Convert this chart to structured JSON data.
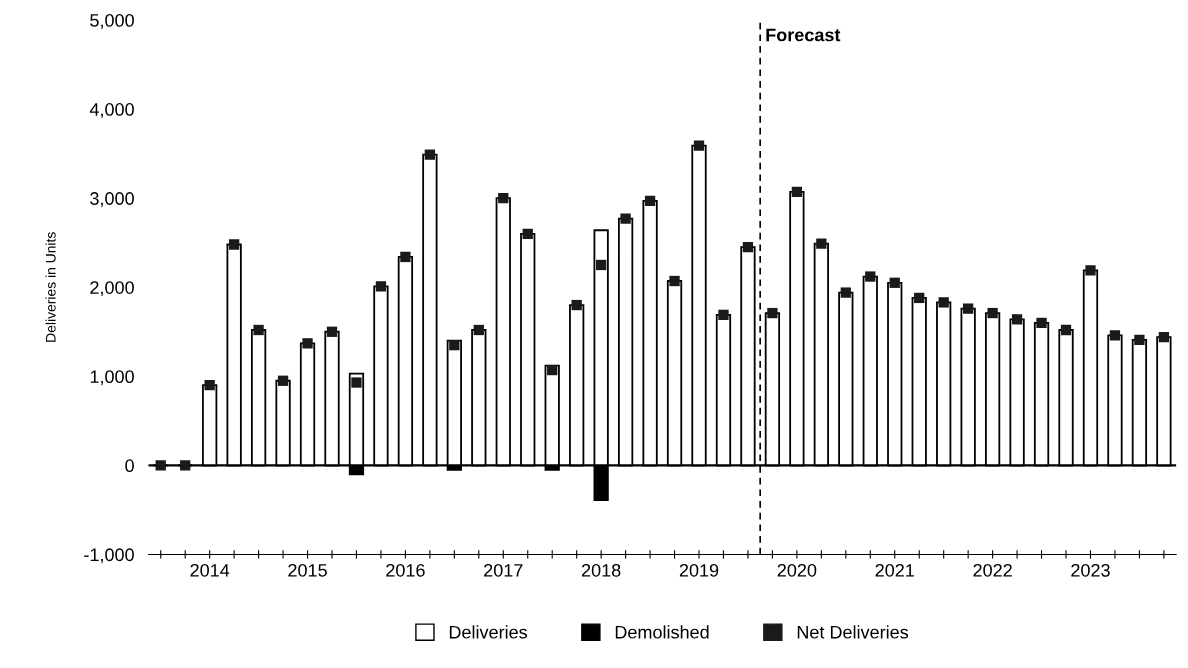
{
  "chart_data": {
    "type": "bar",
    "ylabel": "Deliveries in Units",
    "categories": [
      null,
      null,
      "2014",
      null,
      null,
      null,
      "2015",
      null,
      null,
      null,
      "2016",
      null,
      null,
      null,
      "2017",
      null,
      null,
      null,
      "2018",
      null,
      null,
      null,
      "2019",
      null,
      null,
      null,
      "2020",
      null,
      null,
      null,
      "2021",
      null,
      null,
      null,
      "2022",
      null,
      null,
      null,
      "2023",
      null,
      null,
      null
    ],
    "series": [
      {
        "name": "Deliveries",
        "color": "#ffffff",
        "values": [
          0,
          0,
          900,
          2480,
          1520,
          950,
          1370,
          1500,
          1030,
          2010,
          2340,
          3490,
          1400,
          1520,
          3000,
          2600,
          1120,
          1800,
          2640,
          2770,
          2970,
          2070,
          3590,
          1690,
          2450,
          1710,
          3070,
          2490,
          1940,
          2120,
          2050,
          1880,
          1830,
          1760,
          1710,
          1640,
          1600,
          1520,
          2190,
          1460,
          1410,
          1440
        ]
      },
      {
        "name": "Demolished",
        "color": "#000000",
        "values": [
          0,
          0,
          0,
          0,
          0,
          0,
          0,
          0,
          -100,
          0,
          0,
          0,
          -50,
          0,
          0,
          0,
          -50,
          0,
          -390,
          0,
          0,
          0,
          0,
          0,
          0,
          0,
          0,
          0,
          0,
          0,
          0,
          0,
          0,
          0,
          0,
          0,
          0,
          0,
          0,
          0,
          0,
          0
        ]
      },
      {
        "name": "Net Deliveries",
        "type": "scatter",
        "marker": "square",
        "color": "#1a1a1a",
        "values": [
          0,
          0,
          900,
          2480,
          1520,
          950,
          1370,
          1500,
          930,
          2010,
          2340,
          3490,
          1350,
          1520,
          3000,
          2600,
          1070,
          1800,
          2250,
          2770,
          2970,
          2070,
          3590,
          1690,
          2450,
          1710,
          3070,
          2490,
          1940,
          2120,
          2050,
          1880,
          1830,
          1760,
          1710,
          1640,
          1600,
          1520,
          2190,
          1460,
          1410,
          1440
        ]
      }
    ],
    "ylim": [
      -1000,
      5000
    ],
    "yticks": [
      {
        "value": -1000,
        "label": "-1,000"
      },
      {
        "value": 0,
        "label": "0"
      },
      {
        "value": 1000,
        "label": "1,000"
      },
      {
        "value": 2000,
        "label": "2,000"
      },
      {
        "value": 3000,
        "label": "3,000"
      },
      {
        "value": 4000,
        "label": "4,000"
      },
      {
        "value": 5000,
        "label": "5,000"
      }
    ],
    "annotations": [
      "Forecast"
    ],
    "ref_lines": [
      {
        "axis": "y",
        "value": 0,
        "label": null,
        "color": "#000000",
        "line_style": "solid"
      }
    ],
    "grid": false,
    "legend": "bottom"
  }
}
